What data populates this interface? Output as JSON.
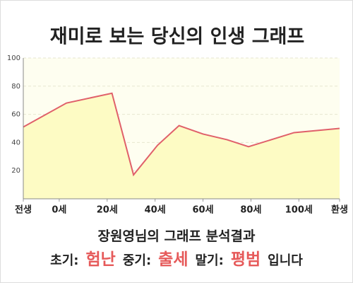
{
  "chart_data": {
    "type": "area",
    "title": "재미로 보는 당신의 인생 그래프",
    "x": [
      -15,
      3,
      22,
      31,
      41,
      50,
      60,
      70,
      79,
      98,
      117
    ],
    "values": [
      51,
      68,
      75,
      17,
      38,
      52,
      46,
      42,
      37,
      47,
      50
    ],
    "color": "#e0606a",
    "fill": "#fdfbc4",
    "xlim": [
      -15,
      117
    ],
    "xticks": [
      {
        "value": -15,
        "label": "전생"
      },
      {
        "value": 0,
        "label": "0세"
      },
      {
        "value": 20,
        "label": "20세"
      },
      {
        "value": 40,
        "label": "40세"
      },
      {
        "value": 60,
        "label": "60세"
      },
      {
        "value": 80,
        "label": "80세"
      },
      {
        "value": 100,
        "label": "100세"
      },
      {
        "value": 117,
        "label": "환생"
      }
    ],
    "ylim": [
      0,
      100
    ],
    "yticks": [
      20,
      40,
      60,
      80,
      100
    ],
    "grid": true
  },
  "result": {
    "heading": "장원영님의 그래프 분석결과",
    "items": [
      {
        "label": "초기:",
        "value": "험난"
      },
      {
        "label": "중기:",
        "value": "출세"
      },
      {
        "label": "말기:",
        "value": "평범"
      }
    ],
    "ending": "입니다"
  }
}
